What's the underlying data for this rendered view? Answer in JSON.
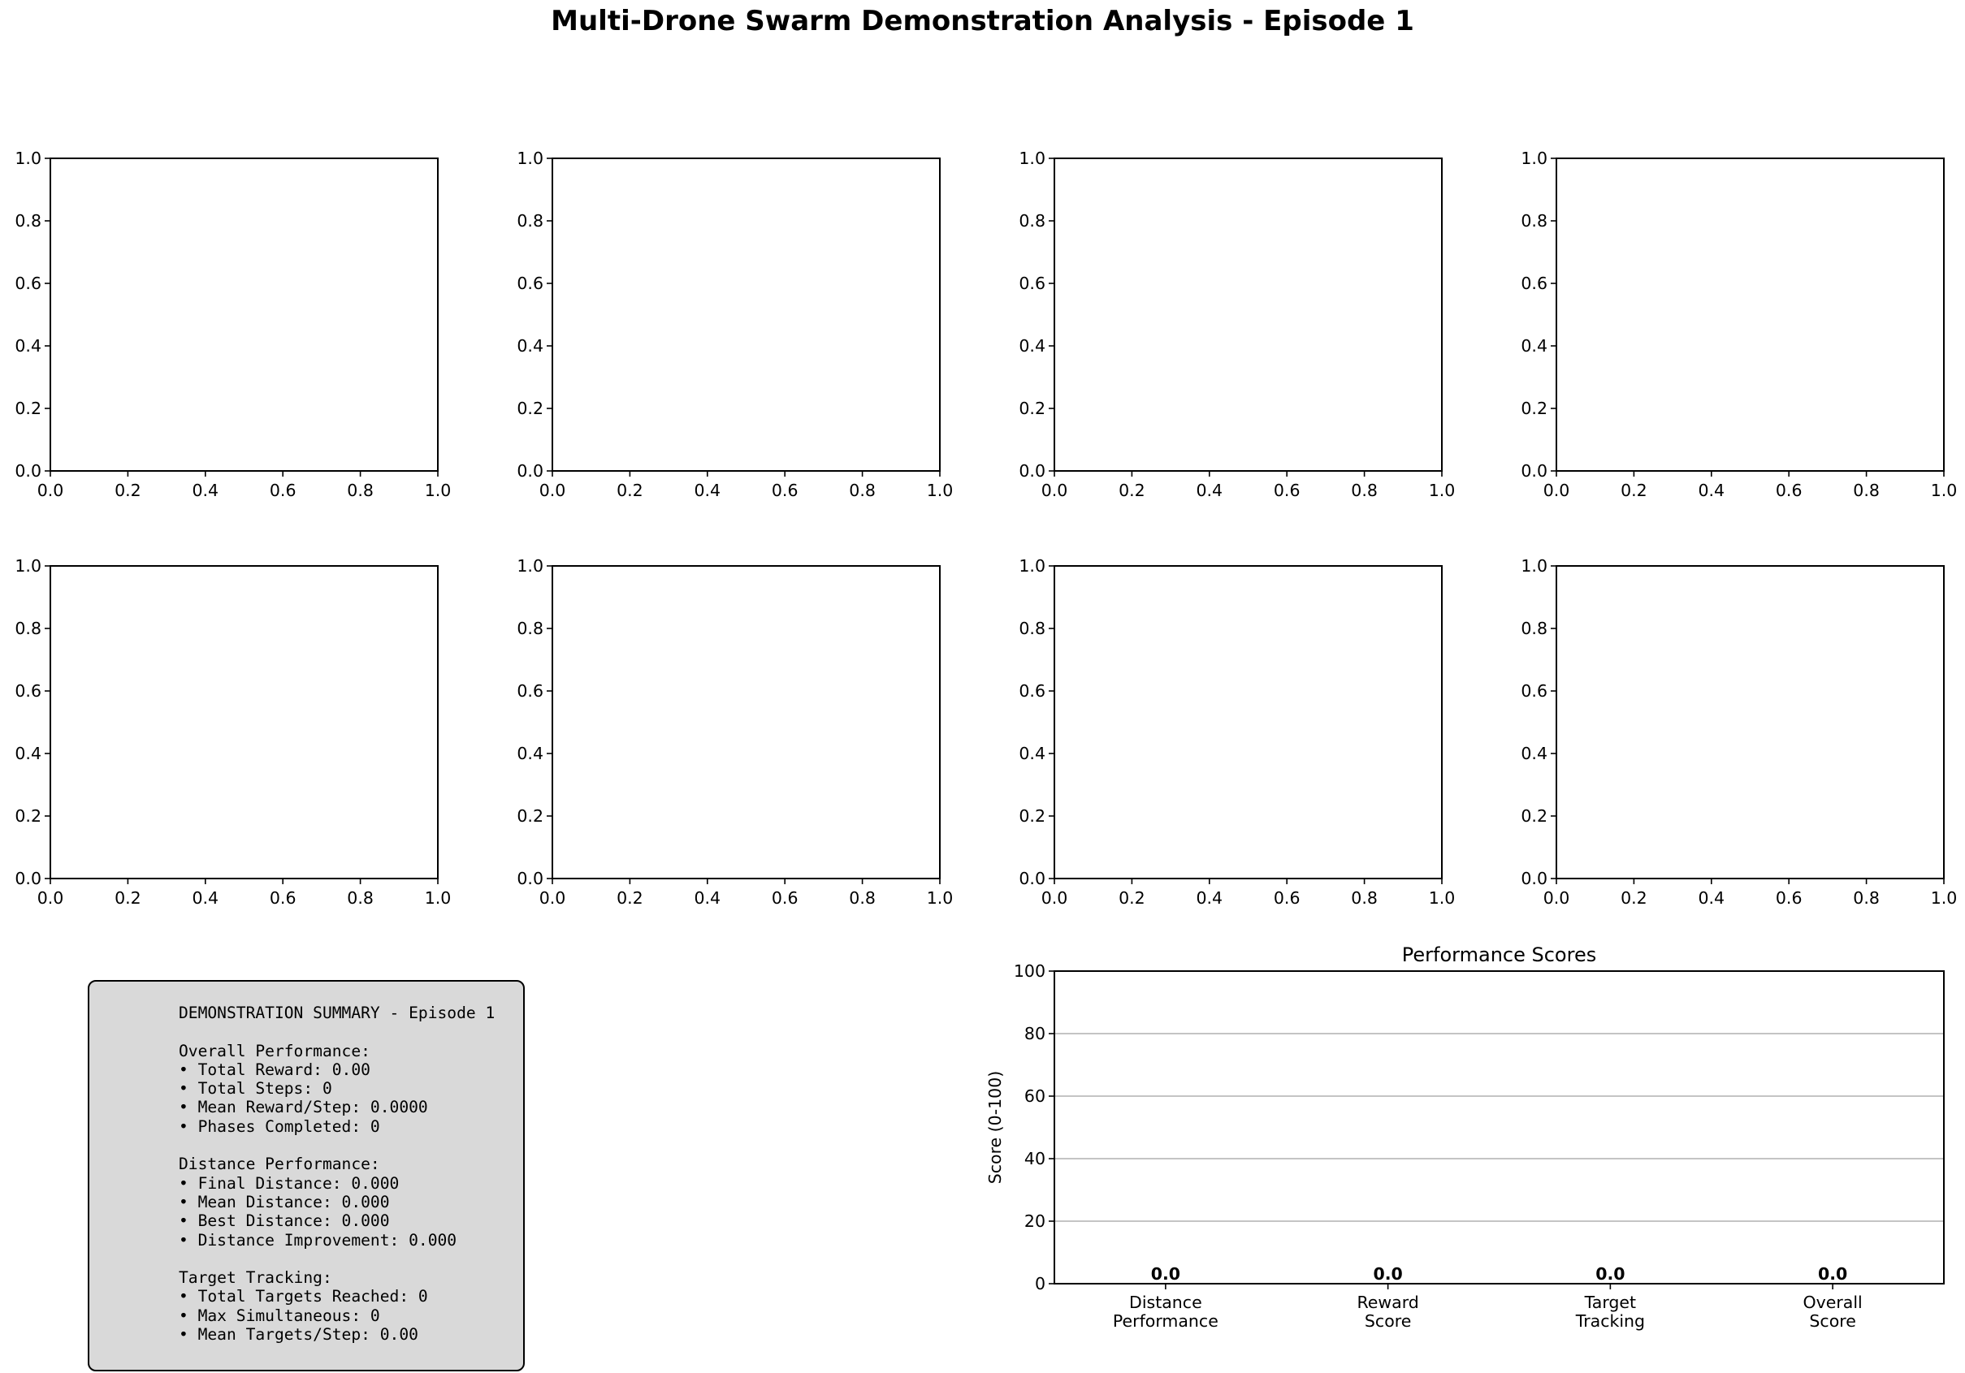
{
  "figure": {
    "suptitle": "Multi-Drone Swarm Demonstration Analysis - Episode 1"
  },
  "chart_data": [
    {
      "type": "empty",
      "xlim": [
        0.0,
        1.0
      ],
      "ylim": [
        0.0,
        1.0
      ],
      "xticks": [
        "0.0",
        "0.2",
        "0.4",
        "0.6",
        "0.8",
        "1.0"
      ],
      "yticks": [
        "0.0",
        "0.2",
        "0.4",
        "0.6",
        "0.8",
        "1.0"
      ],
      "grid": false
    },
    {
      "type": "empty",
      "xlim": [
        0.0,
        1.0
      ],
      "ylim": [
        0.0,
        1.0
      ],
      "xticks": [
        "0.0",
        "0.2",
        "0.4",
        "0.6",
        "0.8",
        "1.0"
      ],
      "yticks": [
        "0.0",
        "0.2",
        "0.4",
        "0.6",
        "0.8",
        "1.0"
      ],
      "grid": false
    },
    {
      "type": "empty",
      "xlim": [
        0.0,
        1.0
      ],
      "ylim": [
        0.0,
        1.0
      ],
      "xticks": [
        "0.0",
        "0.2",
        "0.4",
        "0.6",
        "0.8",
        "1.0"
      ],
      "yticks": [
        "0.0",
        "0.2",
        "0.4",
        "0.6",
        "0.8",
        "1.0"
      ],
      "grid": false
    },
    {
      "type": "empty",
      "xlim": [
        0.0,
        1.0
      ],
      "ylim": [
        0.0,
        1.0
      ],
      "xticks": [
        "0.0",
        "0.2",
        "0.4",
        "0.6",
        "0.8",
        "1.0"
      ],
      "yticks": [
        "0.0",
        "0.2",
        "0.4",
        "0.6",
        "0.8",
        "1.0"
      ],
      "grid": false
    },
    {
      "type": "empty",
      "xlim": [
        0.0,
        1.0
      ],
      "ylim": [
        0.0,
        1.0
      ],
      "xticks": [
        "0.0",
        "0.2",
        "0.4",
        "0.6",
        "0.8",
        "1.0"
      ],
      "yticks": [
        "0.0",
        "0.2",
        "0.4",
        "0.6",
        "0.8",
        "1.0"
      ],
      "grid": false
    },
    {
      "type": "empty",
      "xlim": [
        0.0,
        1.0
      ],
      "ylim": [
        0.0,
        1.0
      ],
      "xticks": [
        "0.0",
        "0.2",
        "0.4",
        "0.6",
        "0.8",
        "1.0"
      ],
      "yticks": [
        "0.0",
        "0.2",
        "0.4",
        "0.6",
        "0.8",
        "1.0"
      ],
      "grid": false
    },
    {
      "type": "empty",
      "xlim": [
        0.0,
        1.0
      ],
      "ylim": [
        0.0,
        1.0
      ],
      "xticks": [
        "0.0",
        "0.2",
        "0.4",
        "0.6",
        "0.8",
        "1.0"
      ],
      "yticks": [
        "0.0",
        "0.2",
        "0.4",
        "0.6",
        "0.8",
        "1.0"
      ],
      "grid": false
    },
    {
      "type": "empty",
      "xlim": [
        0.0,
        1.0
      ],
      "ylim": [
        0.0,
        1.0
      ],
      "xticks": [
        "0.0",
        "0.2",
        "0.4",
        "0.6",
        "0.8",
        "1.0"
      ],
      "yticks": [
        "0.0",
        "0.2",
        "0.4",
        "0.6",
        "0.8",
        "1.0"
      ],
      "grid": false
    },
    {
      "type": "bar",
      "title": "Performance Scores",
      "ylabel": "Score (0-100)",
      "categories": [
        "Distance\nPerformance",
        "Reward\nScore",
        "Target\nTracking",
        "Overall\nScore"
      ],
      "values": [
        0.0,
        0.0,
        0.0,
        0.0
      ],
      "value_labels": [
        "0.0",
        "0.0",
        "0.0",
        "0.0"
      ],
      "ylim": [
        0,
        100
      ],
      "yticks": [
        "0",
        "20",
        "40",
        "60",
        "80",
        "100"
      ],
      "grid": "y"
    }
  ],
  "summary": {
    "lines": [
      "DEMONSTRATION SUMMARY - Episode 1",
      "",
      "Overall Performance:",
      "• Total Reward: 0.00",
      "• Total Steps: 0",
      "• Mean Reward/Step: 0.0000",
      "• Phases Completed: 0",
      "",
      "Distance Performance:",
      "• Final Distance: 0.000",
      "• Mean Distance: 0.000",
      "• Best Distance: 0.000",
      "• Distance Improvement: 0.000",
      "",
      "Target Tracking:",
      "• Total Targets Reached: 0",
      "• Max Simultaneous: 0",
      "• Mean Targets/Step: 0.00"
    ]
  },
  "colors": {
    "axes": "#000000",
    "grid": "#b0b0b0",
    "summary_background": "#d9d9d9"
  }
}
